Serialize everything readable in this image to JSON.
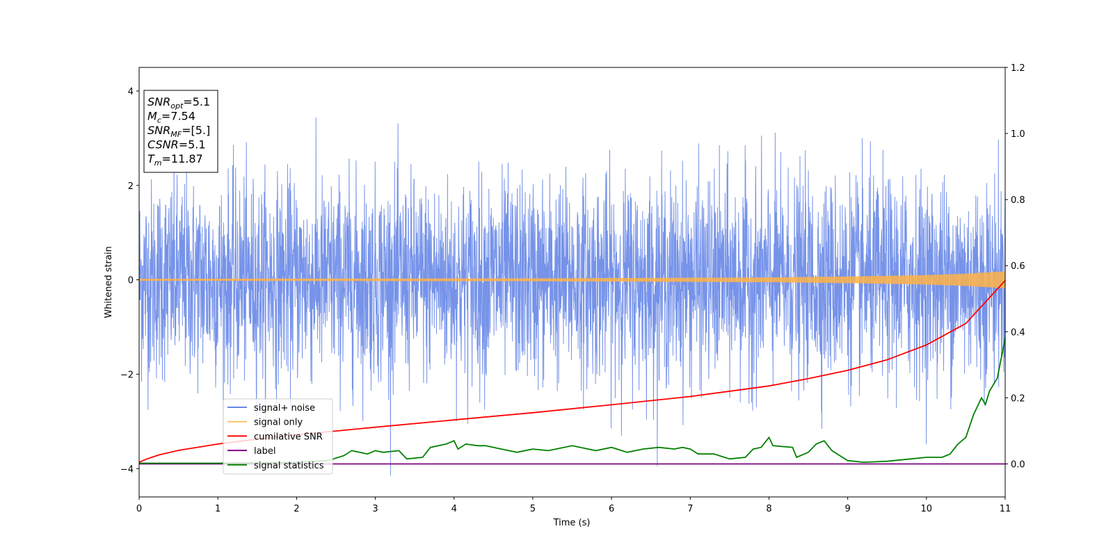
{
  "chart_data": {
    "type": "line",
    "title": "",
    "xlabel": "Time (s)",
    "ylabel": "Whitened strain",
    "xlim": [
      0,
      11
    ],
    "ylim": [
      -4.6,
      4.5
    ],
    "y2lim": [
      -0.1,
      1.2
    ],
    "xticks": [
      "0",
      "1",
      "2",
      "3",
      "4",
      "5",
      "6",
      "7",
      "8",
      "9",
      "10",
      "11"
    ],
    "yticks": [
      "4",
      "2",
      "0",
      "−2",
      "−4"
    ],
    "y2ticks": [
      "1.2",
      "1.0",
      "0.8",
      "0.6",
      "0.4",
      "0.2",
      "0.0"
    ],
    "grid": false,
    "legend_position": "lower-left",
    "annotations": [
      {
        "base": "SNR",
        "sub": "opt",
        "rest": "=5.1"
      },
      {
        "base": "M",
        "sub": "c",
        "rest": "=7.54"
      },
      {
        "base": "SNR",
        "sub": "MF",
        "rest": "=[5.]"
      },
      {
        "base": "CSNR",
        "sub": "",
        "rest": "=5.1"
      },
      {
        "base": "T",
        "sub": "m",
        "rest": "=11.87"
      }
    ],
    "series": [
      {
        "name": "signal+ noise",
        "color": "#4169E1",
        "axis": "left",
        "description_values": {
          "amplitude_typical": 1.8,
          "amplitude_peak": 4.1,
          "mean": 0
        }
      },
      {
        "name": "signal only",
        "color": "#FFB347",
        "axis": "left",
        "envelope": {
          "x": [
            0,
            5,
            8,
            9,
            10,
            10.5,
            11
          ],
          "amp": [
            0.02,
            0.03,
            0.05,
            0.07,
            0.1,
            0.13,
            0.18
          ]
        }
      },
      {
        "name": "cumilative SNR",
        "color": "#FF0000",
        "axis": "right",
        "x": [
          0,
          0.1,
          0.25,
          0.5,
          1,
          1.5,
          2,
          3,
          4,
          5,
          6,
          7,
          8,
          8.5,
          9,
          9.5,
          10,
          10.5,
          11
        ],
        "y": [
          0.005,
          0.015,
          0.027,
          0.041,
          0.06,
          0.075,
          0.088,
          0.111,
          0.133,
          0.155,
          0.179,
          0.204,
          0.236,
          0.258,
          0.283,
          0.315,
          0.36,
          0.425,
          0.555
        ]
      },
      {
        "name": "label",
        "color": "#800080",
        "axis": "right",
        "x": [
          0,
          11
        ],
        "y": [
          0,
          0
        ]
      },
      {
        "name": "signal statistics",
        "color": "#008000",
        "axis": "right",
        "x": [
          0,
          1,
          2,
          2.4,
          2.6,
          2.7,
          2.9,
          3.0,
          3.1,
          3.3,
          3.4,
          3.6,
          3.7,
          3.9,
          4.0,
          4.05,
          4.15,
          4.3,
          4.4,
          4.6,
          4.8,
          5.0,
          5.2,
          5.5,
          5.8,
          6.0,
          6.2,
          6.4,
          6.6,
          6.8,
          6.9,
          7.0,
          7.1,
          7.3,
          7.5,
          7.7,
          7.8,
          7.9,
          8.0,
          8.05,
          8.3,
          8.35,
          8.5,
          8.6,
          8.7,
          8.8,
          9.0,
          9.2,
          9.5,
          9.8,
          10.0,
          10.2,
          10.3,
          10.4,
          10.5,
          10.6,
          10.7,
          10.75,
          10.8,
          10.9,
          11.0
        ],
        "y": [
          0.002,
          0.002,
          0.005,
          0.01,
          0.025,
          0.04,
          0.03,
          0.04,
          0.035,
          0.04,
          0.015,
          0.02,
          0.05,
          0.06,
          0.07,
          0.045,
          0.06,
          0.055,
          0.055,
          0.045,
          0.035,
          0.045,
          0.04,
          0.055,
          0.04,
          0.05,
          0.035,
          0.045,
          0.05,
          0.045,
          0.05,
          0.045,
          0.03,
          0.03,
          0.015,
          0.02,
          0.045,
          0.05,
          0.08,
          0.055,
          0.05,
          0.02,
          0.035,
          0.06,
          0.07,
          0.04,
          0.01,
          0.005,
          0.008,
          0.015,
          0.02,
          0.02,
          0.03,
          0.06,
          0.08,
          0.15,
          0.2,
          0.18,
          0.22,
          0.26,
          0.38
        ]
      }
    ]
  }
}
